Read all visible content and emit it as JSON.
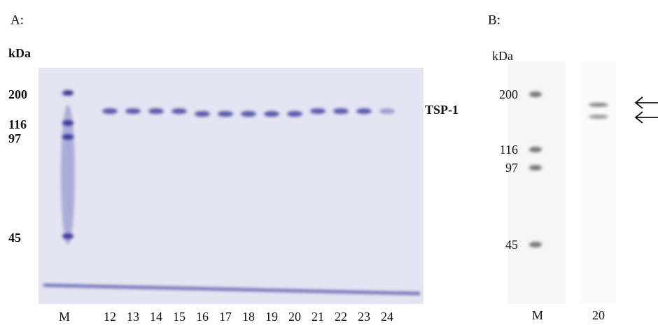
{
  "panel_a": {
    "label": "A:",
    "unit": "kDa",
    "markers": [
      "200",
      "116",
      "97",
      "45"
    ],
    "lanes": [
      "M",
      "12",
      "13",
      "14",
      "15",
      "16",
      "17",
      "18",
      "19",
      "20",
      "21",
      "22",
      "23",
      "24"
    ],
    "band_label": "TSP-1"
  },
  "panel_b": {
    "label": "B:",
    "unit": "kDa",
    "markers": [
      "200",
      "116",
      "97",
      "45"
    ],
    "lanes": [
      "M",
      "20"
    ]
  }
}
